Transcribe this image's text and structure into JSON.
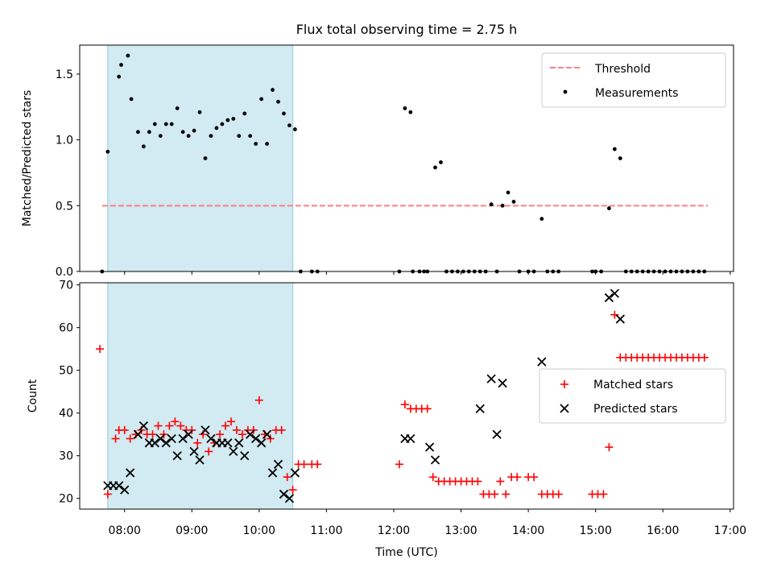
{
  "title": "Flux total observing time = 2.75 h",
  "xlabel": "Time (UTC)",
  "colors": {
    "threshold": "#ff7f7f",
    "measurements": "#000000",
    "matched": "#ff0000",
    "predicted": "#000000",
    "observing_span": "#add8e6"
  },
  "chart_data": [
    {
      "type": "scatter",
      "title": "Flux total observing time = 2.75 h",
      "xlabel": "",
      "ylabel": "Matched/Predicted stars",
      "xlim": [
        "07:20",
        "17:03"
      ],
      "ylim": [
        0,
        1.72
      ],
      "xticks": [
        "08:00",
        "09:00",
        "10:00",
        "11:00",
        "12:00",
        "13:00",
        "14:00",
        "15:00",
        "16:00",
        "17:00"
      ],
      "yticks": [
        "0.0",
        "0.5",
        "1.0",
        "1.5"
      ],
      "legend_position": "top-right",
      "shaded_span": {
        "start": "07:45",
        "end": "10:30"
      },
      "threshold": {
        "name": "Threshold",
        "value": 0.5,
        "from": "07:40",
        "to": "16:40"
      },
      "series": [
        {
          "name": "Measurements",
          "points": [
            [
              "07:40",
              0
            ],
            [
              "07:45",
              0.91
            ],
            [
              "07:55",
              1.48
            ],
            [
              "07:57",
              1.57
            ],
            [
              "08:03",
              1.64
            ],
            [
              "08:06",
              1.31
            ],
            [
              "08:12",
              1.06
            ],
            [
              "08:17",
              0.95
            ],
            [
              "08:22",
              1.06
            ],
            [
              "08:27",
              1.12
            ],
            [
              "08:32",
              1.03
            ],
            [
              "08:37",
              1.12
            ],
            [
              "08:42",
              1.12
            ],
            [
              "08:47",
              1.24
            ],
            [
              "08:52",
              1.06
            ],
            [
              "08:57",
              1.03
            ],
            [
              "09:02",
              1.07
            ],
            [
              "09:07",
              1.21
            ],
            [
              "09:12",
              0.86
            ],
            [
              "09:17",
              1.03
            ],
            [
              "09:22",
              1.09
            ],
            [
              "09:27",
              1.12
            ],
            [
              "09:32",
              1.15
            ],
            [
              "09:37",
              1.16
            ],
            [
              "09:42",
              1.03
            ],
            [
              "09:47",
              1.2
            ],
            [
              "09:52",
              1.03
            ],
            [
              "09:57",
              0.97
            ],
            [
              "10:02",
              1.31
            ],
            [
              "10:07",
              0.97
            ],
            [
              "10:12",
              1.38
            ],
            [
              "10:17",
              1.29
            ],
            [
              "10:22",
              1.2
            ],
            [
              "10:27",
              1.11
            ],
            [
              "10:32",
              1.08
            ],
            [
              "10:37",
              0
            ],
            [
              "10:47",
              0
            ],
            [
              "10:52",
              0
            ],
            [
              "12:05",
              0
            ],
            [
              "12:10",
              1.24
            ],
            [
              "12:15",
              1.21
            ],
            [
              "12:17",
              0
            ],
            [
              "12:23",
              0
            ],
            [
              "12:27",
              0
            ],
            [
              "12:30",
              0
            ],
            [
              "12:37",
              0.79
            ],
            [
              "12:42",
              0.83
            ],
            [
              "12:47",
              0
            ],
            [
              "12:52",
              0
            ],
            [
              "12:57",
              0
            ],
            [
              "13:02",
              0
            ],
            [
              "13:07",
              0
            ],
            [
              "13:12",
              0
            ],
            [
              "13:17",
              0
            ],
            [
              "13:22",
              0
            ],
            [
              "13:27",
              0.51
            ],
            [
              "13:32",
              0
            ],
            [
              "13:37",
              0.5
            ],
            [
              "13:42",
              0.6
            ],
            [
              "13:47",
              0.53
            ],
            [
              "13:52",
              0
            ],
            [
              "14:00",
              0
            ],
            [
              "14:05",
              0
            ],
            [
              "14:12",
              0.4
            ],
            [
              "14:17",
              0
            ],
            [
              "14:22",
              0
            ],
            [
              "14:27",
              0
            ],
            [
              "14:57",
              0
            ],
            [
              "15:00",
              0
            ],
            [
              "15:05",
              0
            ],
            [
              "15:12",
              0.48
            ],
            [
              "15:17",
              0.93
            ],
            [
              "15:22",
              0.86
            ],
            [
              "15:27",
              0
            ],
            [
              "15:32",
              0
            ],
            [
              "15:37",
              0
            ],
            [
              "15:42",
              0
            ],
            [
              "15:47",
              0
            ],
            [
              "15:52",
              0
            ],
            [
              "15:57",
              0
            ],
            [
              "16:02",
              0
            ],
            [
              "16:07",
              0
            ],
            [
              "16:12",
              0
            ],
            [
              "16:17",
              0
            ],
            [
              "16:22",
              0
            ],
            [
              "16:27",
              0
            ],
            [
              "16:32",
              0
            ],
            [
              "16:37",
              0
            ]
          ]
        }
      ]
    },
    {
      "type": "scatter",
      "xlabel": "Time (UTC)",
      "ylabel": "Count",
      "xlim": [
        "07:20",
        "17:03"
      ],
      "ylim": [
        17.5,
        70.5
      ],
      "xticks": [
        "08:00",
        "09:00",
        "10:00",
        "11:00",
        "12:00",
        "13:00",
        "14:00",
        "15:00",
        "16:00",
        "17:00"
      ],
      "yticks": [
        "20",
        "30",
        "40",
        "50",
        "60",
        "70"
      ],
      "legend_position": "center-right",
      "shaded_span": {
        "start": "07:45",
        "end": "10:30"
      },
      "series": [
        {
          "name": "Matched stars",
          "marker": "+",
          "points": [
            [
              "07:38",
              55
            ],
            [
              "07:45",
              21
            ],
            [
              "07:52",
              34
            ],
            [
              "07:55",
              36
            ],
            [
              "08:00",
              36
            ],
            [
              "08:05",
              34
            ],
            [
              "08:10",
              35
            ],
            [
              "08:15",
              36
            ],
            [
              "08:20",
              35
            ],
            [
              "08:25",
              35
            ],
            [
              "08:30",
              37
            ],
            [
              "08:35",
              35
            ],
            [
              "08:40",
              37
            ],
            [
              "08:45",
              38
            ],
            [
              "08:50",
              37
            ],
            [
              "08:55",
              36
            ],
            [
              "09:00",
              36
            ],
            [
              "09:05",
              33
            ],
            [
              "09:10",
              35
            ],
            [
              "09:15",
              31
            ],
            [
              "09:20",
              33
            ],
            [
              "09:25",
              35
            ],
            [
              "09:30",
              37
            ],
            [
              "09:35",
              38
            ],
            [
              "09:40",
              36
            ],
            [
              "09:45",
              35
            ],
            [
              "09:50",
              36
            ],
            [
              "09:55",
              36
            ],
            [
              "10:00",
              43
            ],
            [
              "10:05",
              35
            ],
            [
              "10:10",
              34
            ],
            [
              "10:15",
              36
            ],
            [
              "10:20",
              36
            ],
            [
              "10:25",
              25
            ],
            [
              "10:30",
              22
            ],
            [
              "10:35",
              28
            ],
            [
              "10:40",
              28
            ],
            [
              "10:47",
              28
            ],
            [
              "10:52",
              28
            ],
            [
              "12:05",
              28
            ],
            [
              "12:10",
              42
            ],
            [
              "12:15",
              41
            ],
            [
              "12:20",
              41
            ],
            [
              "12:25",
              41
            ],
            [
              "12:30",
              41
            ],
            [
              "12:35",
              25
            ],
            [
              "12:40",
              24
            ],
            [
              "12:45",
              24
            ],
            [
              "12:50",
              24
            ],
            [
              "12:55",
              24
            ],
            [
              "13:00",
              24
            ],
            [
              "13:05",
              24
            ],
            [
              "13:10",
              24
            ],
            [
              "13:15",
              24
            ],
            [
              "13:20",
              21
            ],
            [
              "13:25",
              21
            ],
            [
              "13:30",
              21
            ],
            [
              "13:35",
              24
            ],
            [
              "13:40",
              21
            ],
            [
              "13:45",
              25
            ],
            [
              "13:50",
              25
            ],
            [
              "14:00",
              25
            ],
            [
              "14:05",
              25
            ],
            [
              "14:12",
              21
            ],
            [
              "14:17",
              21
            ],
            [
              "14:22",
              21
            ],
            [
              "14:27",
              21
            ],
            [
              "14:57",
              21
            ],
            [
              "15:02",
              21
            ],
            [
              "15:07",
              21
            ],
            [
              "15:12",
              32
            ],
            [
              "15:17",
              63
            ],
            [
              "15:22",
              53
            ],
            [
              "15:27",
              53
            ],
            [
              "15:32",
              53
            ],
            [
              "15:37",
              53
            ],
            [
              "15:42",
              53
            ],
            [
              "15:47",
              53
            ],
            [
              "15:52",
              53
            ],
            [
              "15:57",
              53
            ],
            [
              "16:02",
              53
            ],
            [
              "16:07",
              53
            ],
            [
              "16:12",
              53
            ],
            [
              "16:17",
              53
            ],
            [
              "16:22",
              53
            ],
            [
              "16:27",
              53
            ],
            [
              "16:32",
              53
            ],
            [
              "16:37",
              53
            ]
          ]
        },
        {
          "name": "Predicted stars",
          "marker": "x",
          "points": [
            [
              "07:45",
              23
            ],
            [
              "07:50",
              23
            ],
            [
              "07:55",
              23
            ],
            [
              "08:00",
              22
            ],
            [
              "08:05",
              26
            ],
            [
              "08:12",
              35
            ],
            [
              "08:17",
              37
            ],
            [
              "08:22",
              33
            ],
            [
              "08:27",
              33
            ],
            [
              "08:32",
              34
            ],
            [
              "08:37",
              33
            ],
            [
              "08:42",
              34
            ],
            [
              "08:47",
              30
            ],
            [
              "08:52",
              34
            ],
            [
              "08:57",
              35
            ],
            [
              "09:02",
              31
            ],
            [
              "09:07",
              29
            ],
            [
              "09:12",
              36
            ],
            [
              "09:17",
              34
            ],
            [
              "09:22",
              33
            ],
            [
              "09:27",
              33
            ],
            [
              "09:32",
              33
            ],
            [
              "09:37",
              31
            ],
            [
              "09:42",
              33
            ],
            [
              "09:47",
              30
            ],
            [
              "09:52",
              35
            ],
            [
              "09:57",
              34
            ],
            [
              "10:02",
              33
            ],
            [
              "10:07",
              35
            ],
            [
              "10:12",
              26
            ],
            [
              "10:17",
              28
            ],
            [
              "10:22",
              21
            ],
            [
              "10:27",
              20
            ],
            [
              "10:32",
              26
            ],
            [
              "12:10",
              34
            ],
            [
              "12:15",
              34
            ],
            [
              "12:32",
              32
            ],
            [
              "12:37",
              29
            ],
            [
              "13:17",
              41
            ],
            [
              "13:27",
              48
            ],
            [
              "13:32",
              35
            ],
            [
              "13:37",
              47
            ],
            [
              "14:12",
              52
            ],
            [
              "15:12",
              67
            ],
            [
              "15:17",
              68
            ],
            [
              "15:22",
              62
            ]
          ]
        }
      ]
    }
  ]
}
